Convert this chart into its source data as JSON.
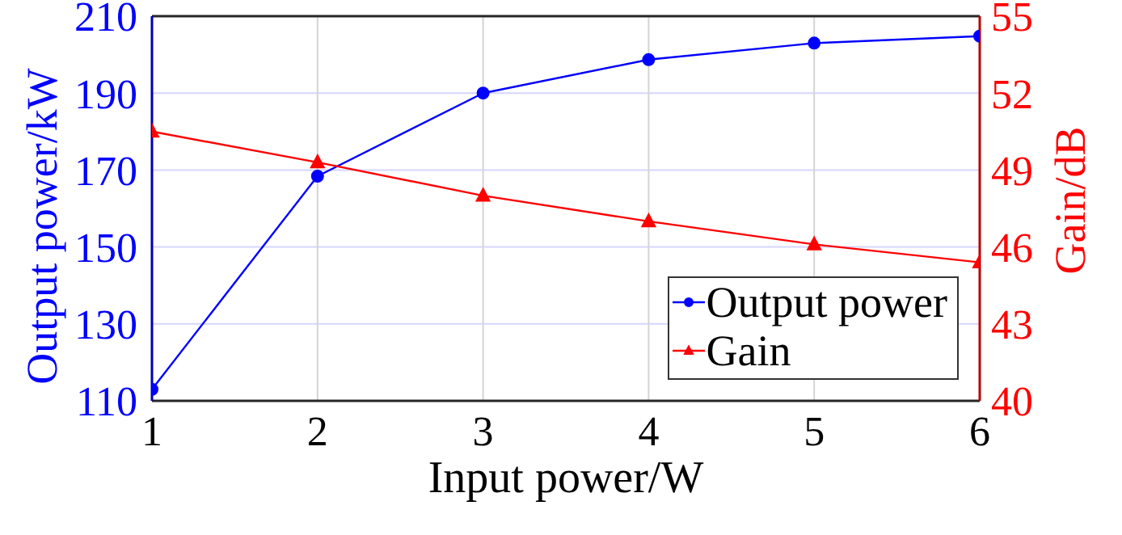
{
  "chart_data": {
    "type": "line",
    "xlabel": "Input power/W",
    "ylabel": "Output power/kW",
    "y2label": "Gain/dB",
    "x": [
      1,
      2,
      3,
      4,
      5,
      6
    ],
    "xlim": [
      1,
      6
    ],
    "xticks": [
      1,
      2,
      3,
      4,
      5,
      6
    ],
    "ylim": [
      110,
      210
    ],
    "yticks": [
      110,
      130,
      150,
      170,
      190,
      210
    ],
    "y2lim": [
      40,
      55
    ],
    "y2ticks": [
      40,
      43,
      46,
      49,
      52,
      55
    ],
    "series": [
      {
        "name": "Output power",
        "color": "#0000ff",
        "marker": "circle",
        "values": [
          113,
          168.4,
          190,
          198.7,
          203,
          204.8
        ]
      },
      {
        "name": "Gain",
        "color": "#ff0000",
        "axis": "y2",
        "marker": "triangle",
        "values": [
          50.5,
          49.3,
          48.0,
          47.0,
          46.1,
          45.4
        ]
      }
    ],
    "grid": true,
    "legend": "bottom right"
  }
}
